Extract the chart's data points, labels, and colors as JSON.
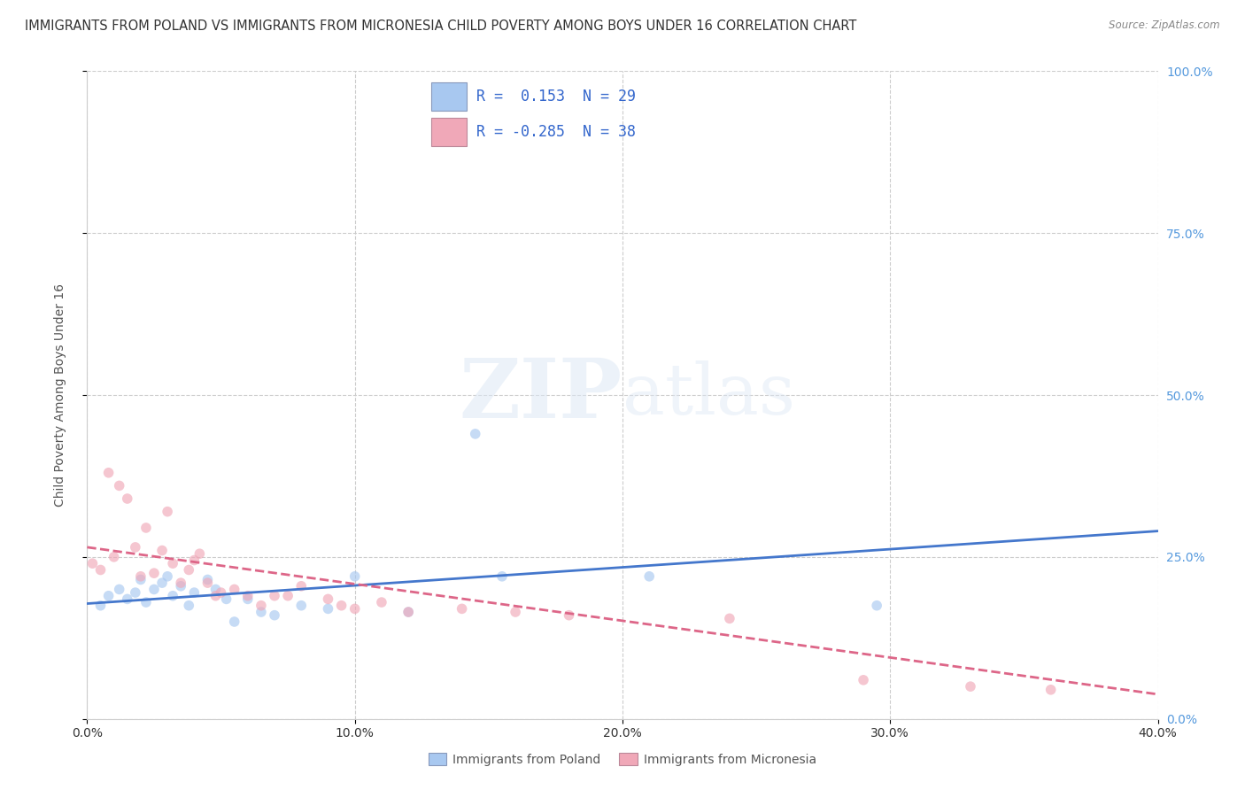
{
  "title": "IMMIGRANTS FROM POLAND VS IMMIGRANTS FROM MICRONESIA CHILD POVERTY AMONG BOYS UNDER 16 CORRELATION CHART",
  "source": "Source: ZipAtlas.com",
  "ylabel": "Child Poverty Among Boys Under 16",
  "xlabel_poland": "Immigrants from Poland",
  "xlabel_micronesia": "Immigrants from Micronesia",
  "r_poland": 0.153,
  "n_poland": 29,
  "r_micronesia": -0.285,
  "n_micronesia": 38,
  "color_poland": "#a8c8f0",
  "color_micronesia": "#f0a8b8",
  "color_poland_line": "#4477cc",
  "color_micronesia_line": "#dd6688",
  "xlim": [
    0.0,
    0.4
  ],
  "ylim": [
    0.0,
    1.0
  ],
  "xticks": [
    0.0,
    0.1,
    0.2,
    0.3,
    0.4
  ],
  "yticks": [
    0.0,
    0.25,
    0.5,
    0.75,
    1.0
  ],
  "poland_scatter_x": [
    0.005,
    0.008,
    0.012,
    0.015,
    0.018,
    0.02,
    0.022,
    0.025,
    0.028,
    0.03,
    0.032,
    0.035,
    0.038,
    0.04,
    0.045,
    0.048,
    0.052,
    0.055,
    0.06,
    0.065,
    0.07,
    0.08,
    0.09,
    0.1,
    0.12,
    0.145,
    0.155,
    0.21,
    0.295
  ],
  "poland_scatter_y": [
    0.175,
    0.19,
    0.2,
    0.185,
    0.195,
    0.215,
    0.18,
    0.2,
    0.21,
    0.22,
    0.19,
    0.205,
    0.175,
    0.195,
    0.215,
    0.2,
    0.185,
    0.15,
    0.185,
    0.165,
    0.16,
    0.175,
    0.17,
    0.22,
    0.165,
    0.44,
    0.22,
    0.22,
    0.175
  ],
  "micronesia_scatter_x": [
    0.002,
    0.005,
    0.008,
    0.01,
    0.012,
    0.015,
    0.018,
    0.02,
    0.022,
    0.025,
    0.028,
    0.03,
    0.032,
    0.035,
    0.038,
    0.04,
    0.042,
    0.045,
    0.048,
    0.05,
    0.055,
    0.06,
    0.065,
    0.07,
    0.075,
    0.08,
    0.09,
    0.095,
    0.1,
    0.11,
    0.12,
    0.14,
    0.16,
    0.18,
    0.24,
    0.29,
    0.33,
    0.36
  ],
  "micronesia_scatter_y": [
    0.24,
    0.23,
    0.38,
    0.25,
    0.36,
    0.34,
    0.265,
    0.22,
    0.295,
    0.225,
    0.26,
    0.32,
    0.24,
    0.21,
    0.23,
    0.245,
    0.255,
    0.21,
    0.19,
    0.195,
    0.2,
    0.19,
    0.175,
    0.19,
    0.19,
    0.205,
    0.185,
    0.175,
    0.17,
    0.18,
    0.165,
    0.17,
    0.165,
    0.16,
    0.155,
    0.06,
    0.05,
    0.045
  ],
  "poland_trend_x": [
    0.0,
    0.4
  ],
  "poland_trend_y": [
    0.178,
    0.29
  ],
  "micronesia_trend_x": [
    0.0,
    0.4
  ],
  "micronesia_trend_y": [
    0.265,
    0.038
  ],
  "watermark_zip": "ZIP",
  "watermark_atlas": "atlas",
  "title_fontsize": 10.5,
  "label_fontsize": 10,
  "tick_fontsize": 10,
  "scatter_size": 70,
  "scatter_alpha": 0.65,
  "ytick_color": "#5599dd",
  "xtick_color": "#333333",
  "grid_color": "#cccccc",
  "spine_color": "#cccccc"
}
